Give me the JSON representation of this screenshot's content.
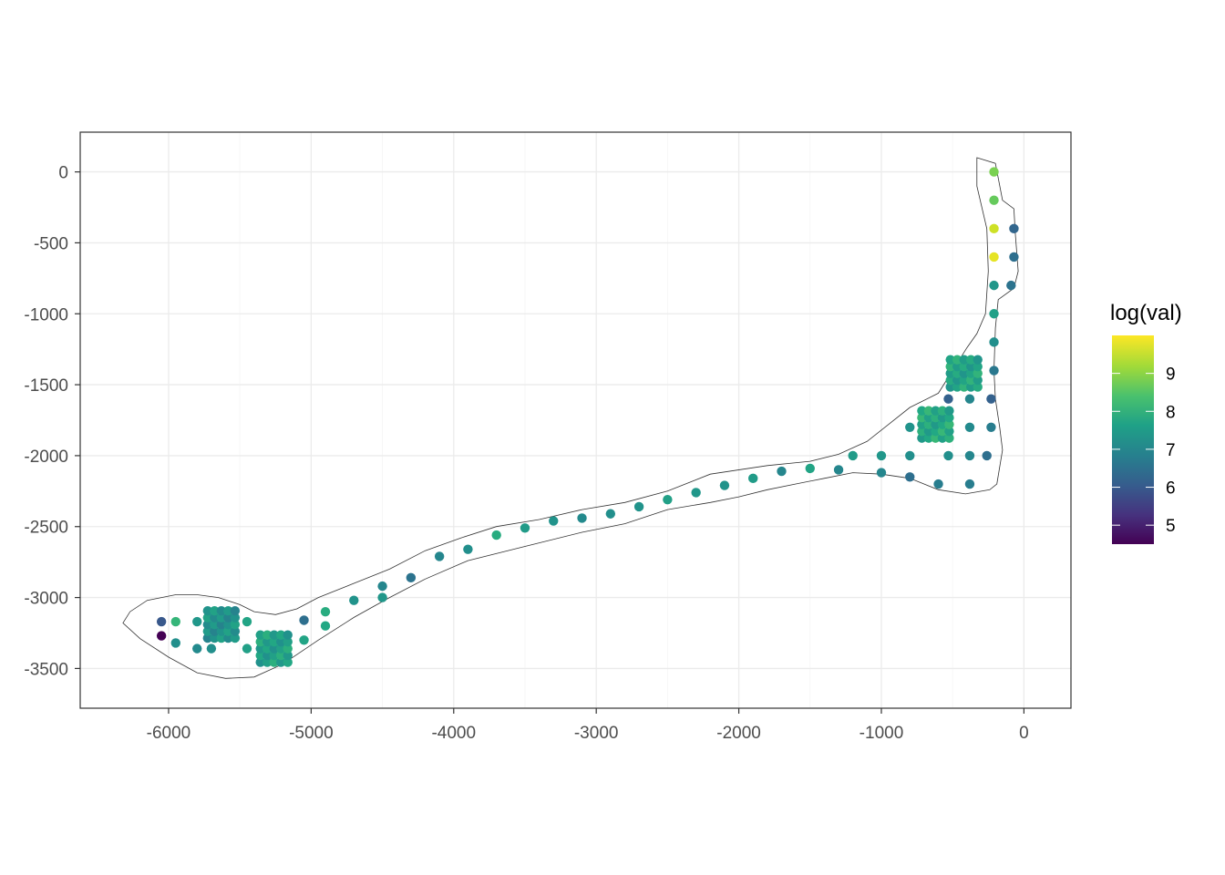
{
  "chart_data": {
    "type": "scatter",
    "xlim": [
      -6620,
      330
    ],
    "ylim": [
      -3780,
      280
    ],
    "x_ticks": [
      -6000,
      -5000,
      -4000,
      -3000,
      -2000,
      -1000,
      0
    ],
    "y_ticks": [
      0,
      -500,
      -1000,
      -1500,
      -2000,
      -2500,
      -3000,
      -3500
    ],
    "x_tick_labels": [
      "-6000",
      "-5000",
      "-4000",
      "-3000",
      "-2000",
      "-1000",
      "0"
    ],
    "y_tick_labels": [
      "0",
      "-500",
      "-1000",
      "-1500",
      "-2000",
      "-2500",
      "-3000",
      "-3500"
    ],
    "grid": true,
    "xlabel": "",
    "ylabel": "",
    "colorbar": {
      "title": "log(val)",
      "range": [
        4.5,
        10
      ],
      "ticks": [
        5,
        6,
        7,
        8,
        9
      ],
      "tick_labels": [
        "5",
        "6",
        "7",
        "8",
        "9"
      ],
      "colormap": "viridis",
      "position": "right"
    },
    "outline": [
      [
        -330,
        100
      ],
      [
        -200,
        60
      ],
      [
        -150,
        -200
      ],
      [
        -70,
        -260
      ],
      [
        -60,
        -440
      ],
      [
        -40,
        -700
      ],
      [
        -70,
        -820
      ],
      [
        -180,
        -900
      ],
      [
        -200,
        -1100
      ],
      [
        -210,
        -1400
      ],
      [
        -200,
        -1600
      ],
      [
        -170,
        -1800
      ],
      [
        -150,
        -1960
      ],
      [
        -190,
        -2200
      ],
      [
        -240,
        -2240
      ],
      [
        -410,
        -2270
      ],
      [
        -600,
        -2240
      ],
      [
        -800,
        -2160
      ],
      [
        -1000,
        -2130
      ],
      [
        -1200,
        -2120
      ],
      [
        -1400,
        -2160
      ],
      [
        -1600,
        -2200
      ],
      [
        -1800,
        -2240
      ],
      [
        -2000,
        -2290
      ],
      [
        -2200,
        -2330
      ],
      [
        -2500,
        -2380
      ],
      [
        -2800,
        -2480
      ],
      [
        -3100,
        -2540
      ],
      [
        -3500,
        -2640
      ],
      [
        -3900,
        -2740
      ],
      [
        -4200,
        -2870
      ],
      [
        -4450,
        -3000
      ],
      [
        -4700,
        -3140
      ],
      [
        -4950,
        -3300
      ],
      [
        -5200,
        -3470
      ],
      [
        -5400,
        -3560
      ],
      [
        -5600,
        -3570
      ],
      [
        -5800,
        -3530
      ],
      [
        -6000,
        -3420
      ],
      [
        -6200,
        -3290
      ],
      [
        -6320,
        -3180
      ],
      [
        -6270,
        -3100
      ],
      [
        -6150,
        -3020
      ],
      [
        -5950,
        -2980
      ],
      [
        -5800,
        -2980
      ],
      [
        -5650,
        -3000
      ],
      [
        -5500,
        -3050
      ],
      [
        -5400,
        -3100
      ],
      [
        -5250,
        -3120
      ],
      [
        -5100,
        -3080
      ],
      [
        -4950,
        -3000
      ],
      [
        -4700,
        -2900
      ],
      [
        -4450,
        -2800
      ],
      [
        -4200,
        -2670
      ],
      [
        -3950,
        -2580
      ],
      [
        -3700,
        -2500
      ],
      [
        -3400,
        -2450
      ],
      [
        -3100,
        -2380
      ],
      [
        -2800,
        -2330
      ],
      [
        -2500,
        -2250
      ],
      [
        -2200,
        -2130
      ],
      [
        -1800,
        -2070
      ],
      [
        -1500,
        -2040
      ],
      [
        -1300,
        -1990
      ],
      [
        -1100,
        -1900
      ],
      [
        -950,
        -1780
      ],
      [
        -800,
        -1660
      ],
      [
        -600,
        -1560
      ],
      [
        -500,
        -1400
      ],
      [
        -400,
        -1240
      ],
      [
        -330,
        -1140
      ],
      [
        -270,
        -1000
      ],
      [
        -250,
        -700
      ],
      [
        -260,
        -400
      ],
      [
        -330,
        -100
      ],
      [
        -330,
        100
      ]
    ],
    "points": [
      {
        "x": -210,
        "y": 0,
        "v": 8.9
      },
      {
        "x": -210,
        "y": -200,
        "v": 8.7
      },
      {
        "x": -210,
        "y": -400,
        "v": 9.6
      },
      {
        "x": -210,
        "y": -600,
        "v": 9.8
      },
      {
        "x": -210,
        "y": -800,
        "v": 7.4
      },
      {
        "x": -210,
        "y": -1000,
        "v": 7.6
      },
      {
        "x": -210,
        "y": -1200,
        "v": 7.2
      },
      {
        "x": -210,
        "y": -1400,
        "v": 6.7
      },
      {
        "x": -230,
        "y": -1600,
        "v": 6.2
      },
      {
        "x": -230,
        "y": -1800,
        "v": 6.8
      },
      {
        "x": -260,
        "y": -2000,
        "v": 6.5
      },
      {
        "x": -70,
        "y": -400,
        "v": 6.3
      },
      {
        "x": -70,
        "y": -600,
        "v": 6.5
      },
      {
        "x": -90,
        "y": -800,
        "v": 6.6
      },
      {
        "x": -380,
        "y": -1600,
        "v": 7.0
      },
      {
        "x": -530,
        "y": -1600,
        "v": 6.2
      },
      {
        "x": -380,
        "y": -1800,
        "v": 7.1
      },
      {
        "x": -380,
        "y": -2000,
        "v": 7.0
      },
      {
        "x": -530,
        "y": -2000,
        "v": 7.2
      },
      {
        "x": -380,
        "y": -2200,
        "v": 6.8
      },
      {
        "x": -600,
        "y": -2200,
        "v": 6.8
      },
      {
        "x": -800,
        "y": -1800,
        "v": 7.3
      },
      {
        "x": -800,
        "y": -2000,
        "v": 7.2
      },
      {
        "x": -800,
        "y": -2150,
        "v": 6.5
      },
      {
        "x": -1000,
        "y": -2000,
        "v": 7.4
      },
      {
        "x": -1000,
        "y": -2120,
        "v": 7.0
      },
      {
        "x": -1200,
        "y": -2000,
        "v": 7.5
      },
      {
        "x": -1300,
        "y": -2100,
        "v": 7.0
      },
      {
        "x": -1500,
        "y": -2090,
        "v": 7.7
      },
      {
        "x": -1700,
        "y": -2110,
        "v": 7.0
      },
      {
        "x": -1900,
        "y": -2160,
        "v": 7.5
      },
      {
        "x": -2100,
        "y": -2210,
        "v": 7.3
      },
      {
        "x": -2300,
        "y": -2260,
        "v": 7.4
      },
      {
        "x": -2500,
        "y": -2310,
        "v": 7.6
      },
      {
        "x": -2700,
        "y": -2360,
        "v": 7.3
      },
      {
        "x": -2900,
        "y": -2410,
        "v": 7.2
      },
      {
        "x": -3100,
        "y": -2440,
        "v": 7.1
      },
      {
        "x": -3300,
        "y": -2460,
        "v": 7.3
      },
      {
        "x": -3500,
        "y": -2510,
        "v": 7.5
      },
      {
        "x": -3700,
        "y": -2560,
        "v": 7.9
      },
      {
        "x": -3900,
        "y": -2660,
        "v": 7.2
      },
      {
        "x": -4100,
        "y": -2710,
        "v": 7.0
      },
      {
        "x": -4300,
        "y": -2860,
        "v": 6.6
      },
      {
        "x": -4500,
        "y": -2920,
        "v": 7.0
      },
      {
        "x": -4500,
        "y": -3000,
        "v": 7.4
      },
      {
        "x": -4700,
        "y": -3020,
        "v": 7.3
      },
      {
        "x": -4900,
        "y": -3100,
        "v": 7.9
      },
      {
        "x": -4900,
        "y": -3200,
        "v": 7.8
      },
      {
        "x": -5050,
        "y": -3160,
        "v": 6.5
      },
      {
        "x": -5050,
        "y": -3300,
        "v": 7.7
      },
      {
        "x": -5450,
        "y": -3170,
        "v": 7.7
      },
      {
        "x": -5450,
        "y": -3360,
        "v": 7.6
      },
      {
        "x": -5700,
        "y": -3360,
        "v": 7.2
      },
      {
        "x": -5800,
        "y": -3170,
        "v": 7.4
      },
      {
        "x": -5800,
        "y": -3360,
        "v": 7.1
      },
      {
        "x": -5950,
        "y": -3170,
        "v": 8.1
      },
      {
        "x": -5950,
        "y": -3320,
        "v": 7.2
      },
      {
        "x": -6050,
        "y": -3170,
        "v": 6.0
      },
      {
        "x": -6050,
        "y": -3270,
        "v": 4.5
      }
    ],
    "clusters": [
      {
        "cx": -420,
        "cy": -1420,
        "spacing": 48,
        "n": 5,
        "v": 7.7
      },
      {
        "cx": -620,
        "cy": -1780,
        "spacing": 48,
        "n": 5,
        "v": 7.8
      },
      {
        "cx": -5630,
        "cy": -3190,
        "spacing": 48,
        "n": 5,
        "v": 7.3
      },
      {
        "cx": -5260,
        "cy": -3360,
        "spacing": 48,
        "n": 5,
        "v": 7.6
      }
    ]
  }
}
